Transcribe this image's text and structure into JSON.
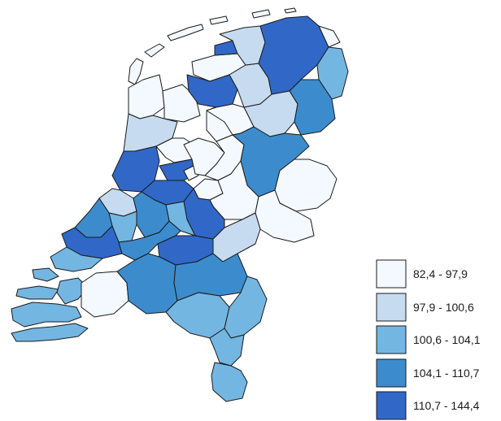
{
  "colors": {
    "class_1": "#f4f9ff",
    "class_2": "#c6dbef",
    "class_3": "#74b6e2",
    "class_4": "#3c8ccd",
    "class_5": "#3168c8",
    "border": "#1a1a1a"
  },
  "legend": {
    "items": [
      {
        "label": "82,4 - 97,9",
        "class": "class_1"
      },
      {
        "label": "97,9 - 100,6",
        "class": "class_2"
      },
      {
        "label": "100,6 - 104,1",
        "class": "class_3"
      },
      {
        "label": "104,1 - 110,7",
        "class": "class_4"
      },
      {
        "label": "110,7 - 144,4",
        "class": "class_5"
      }
    ]
  }
}
